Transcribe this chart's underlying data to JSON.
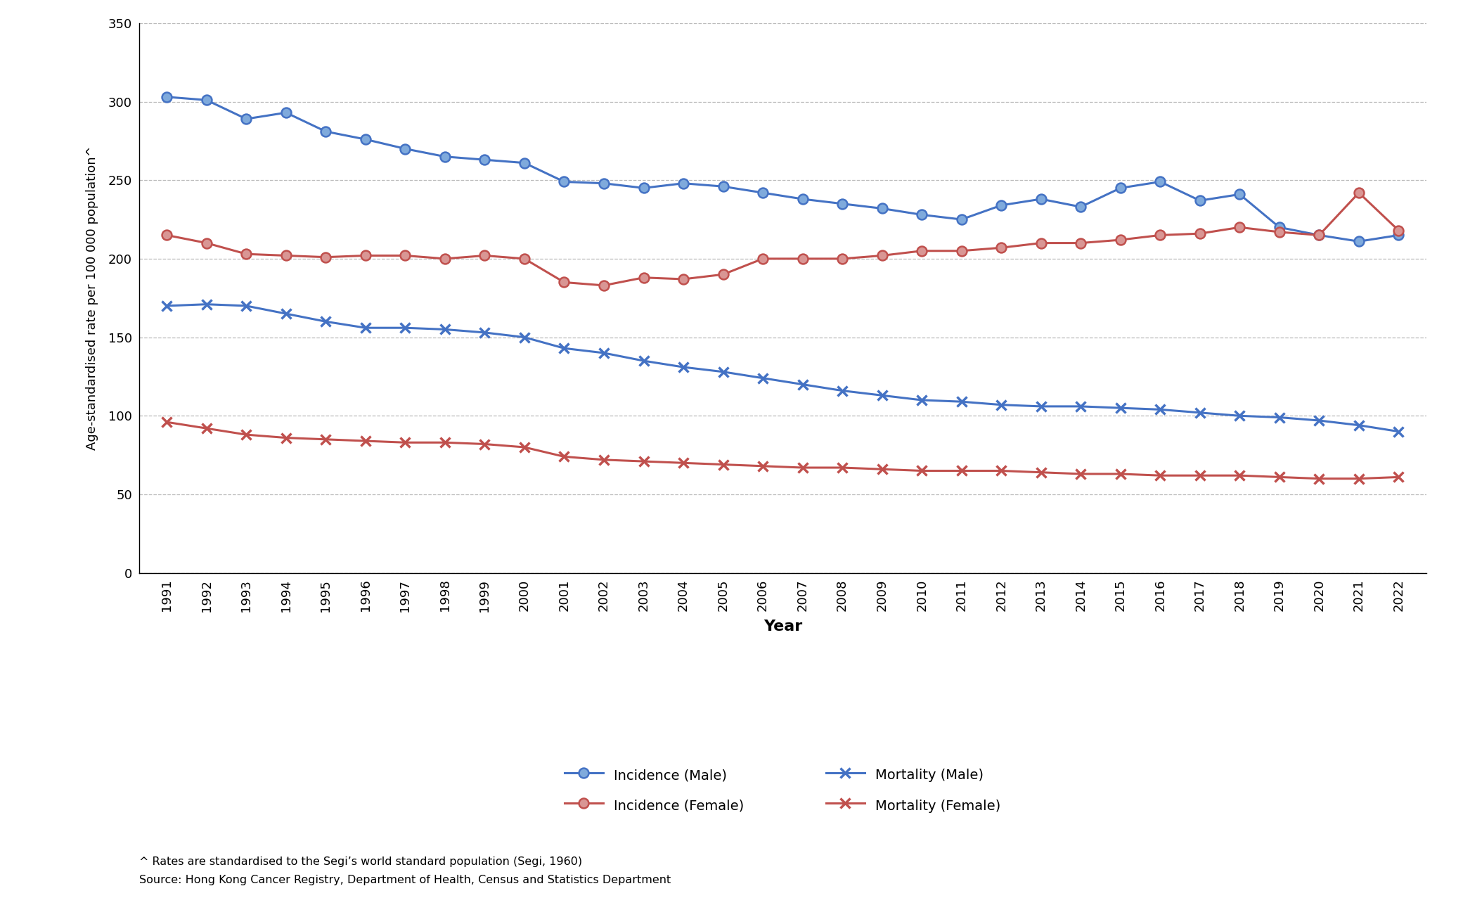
{
  "years": [
    1991,
    1992,
    1993,
    1994,
    1995,
    1996,
    1997,
    1998,
    1999,
    2000,
    2001,
    2002,
    2003,
    2004,
    2005,
    2006,
    2007,
    2008,
    2009,
    2010,
    2011,
    2012,
    2013,
    2014,
    2015,
    2016,
    2017,
    2018,
    2019,
    2020,
    2021,
    2022
  ],
  "incidence_male": [
    303,
    301,
    289,
    293,
    281,
    276,
    270,
    265,
    263,
    261,
    249,
    248,
    245,
    248,
    246,
    242,
    238,
    235,
    232,
    228,
    225,
    234,
    238,
    233,
    245,
    249,
    237,
    241,
    220,
    215,
    211,
    215
  ],
  "incidence_female": [
    215,
    210,
    203,
    202,
    201,
    202,
    202,
    200,
    202,
    200,
    185,
    183,
    188,
    187,
    190,
    200,
    200,
    200,
    202,
    205,
    205,
    207,
    210,
    210,
    212,
    215,
    216,
    220,
    217,
    215,
    242,
    218
  ],
  "mortality_male": [
    170,
    171,
    170,
    165,
    160,
    156,
    156,
    155,
    153,
    150,
    143,
    140,
    135,
    131,
    128,
    124,
    120,
    116,
    113,
    110,
    109,
    107,
    106,
    106,
    105,
    104,
    102,
    100,
    99,
    97,
    94,
    90
  ],
  "mortality_female": [
    96,
    92,
    88,
    86,
    85,
    84,
    83,
    83,
    82,
    80,
    74,
    72,
    71,
    70,
    69,
    68,
    67,
    67,
    66,
    65,
    65,
    65,
    64,
    63,
    63,
    62,
    62,
    62,
    61,
    60,
    60,
    61
  ],
  "color_blue": "#4472C4",
  "color_red": "#C0504D",
  "marker_face_blue": "#7FAADC",
  "marker_face_red": "#D99694",
  "ylabel": "Age-standardised rate per 100 000 population^",
  "xlabel": "Year",
  "ylim": [
    0,
    350
  ],
  "yticks": [
    0,
    50,
    100,
    150,
    200,
    250,
    300,
    350
  ],
  "legend_labels": [
    "Incidence (Male)",
    "Incidence (Female)",
    "Mortality (Male)",
    "Mortality (Female)"
  ],
  "footnote1": "^ Rates are standardised to the Segi’s world standard population (Segi, 1960)",
  "footnote2": "Source: Hong Kong Cancer Registry, Department of Health, Census and Statistics Department"
}
